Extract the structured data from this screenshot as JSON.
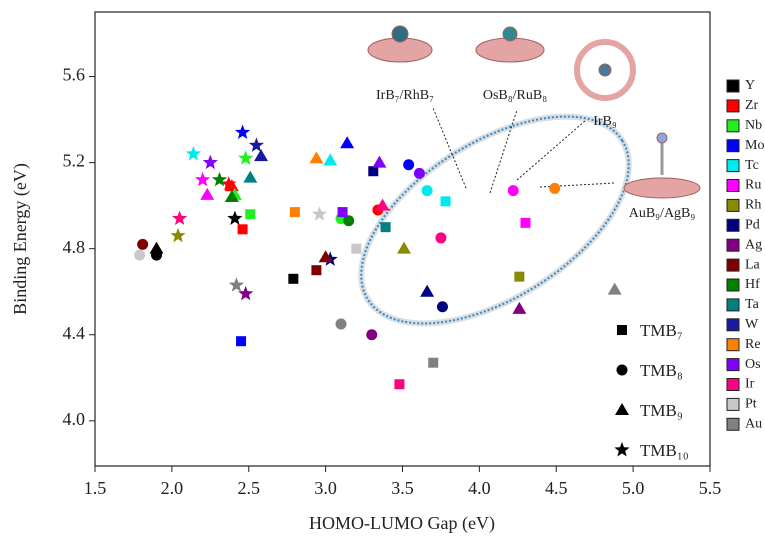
{
  "chart_data": {
    "type": "scatter",
    "xlabel": "HOMO-LUMO Gap (eV)",
    "ylabel": "Binding Energy (eV)",
    "xlim": [
      1.5,
      5.5
    ],
    "ylim": [
      3.79,
      5.9
    ],
    "xticks": [
      1.5,
      {
        "value": 2,
        "label": "2.0"
      },
      2.5,
      {
        "value": 3,
        "label": "3.0"
      },
      3.5,
      {
        "value": 4,
        "label": "4.0"
      },
      4.5,
      {
        "value": 5,
        "label": "5.0"
      },
      5.5
    ],
    "yticks": [
      {
        "value": 4,
        "label": "4.0"
      },
      4.4,
      4.8,
      5.2,
      5.6
    ],
    "markers": [
      "square",
      "circle",
      "triangle",
      "star"
    ],
    "marker_legend": [
      "TMB₇",
      "TMB₈",
      "TMB₉",
      "TMB₁₀"
    ],
    "annotations": [
      "IrB₇/RhB₇",
      "OsB₈/RuB₈",
      "IrB₉",
      "AuB₉/AgB₉"
    ],
    "series": [
      {
        "name": "Y",
        "color": "#000000",
        "x": [
          2.79,
          1.9,
          1.9,
          2.41
        ],
        "values": [
          4.66,
          4.77,
          4.8,
          4.94
        ]
      },
      {
        "name": "Zr",
        "color": "#ff0000",
        "x": [
          2.46,
          3.34,
          2.39,
          2.37
        ],
        "values": [
          4.89,
          4.98,
          5.09,
          5.1
        ]
      },
      {
        "name": "Nb",
        "color": "#22ee22",
        "x": [
          2.51,
          3.1,
          2.41,
          2.48
        ],
        "values": [
          4.96,
          4.94,
          5.05,
          5.22
        ]
      },
      {
        "name": "Mo",
        "color": "#0000ff",
        "x": [
          2.45,
          3.54,
          3.14,
          2.46
        ],
        "values": [
          4.37,
          5.19,
          5.29,
          5.34
        ]
      },
      {
        "name": "Tc",
        "color": "#00e8f0",
        "x": [
          3.78,
          3.66,
          3.03,
          2.14
        ],
        "values": [
          5.02,
          5.07,
          5.21,
          5.24
        ]
      },
      {
        "name": "Ru",
        "color": "#ff00ff",
        "x": [
          4.3,
          4.22,
          2.23,
          2.2
        ],
        "values": [
          4.92,
          5.07,
          5.05,
          5.12
        ]
      },
      {
        "name": "Rh",
        "color": "#8a8a00",
        "x": [
          4.26,
          null,
          3.51,
          2.04
        ],
        "values": [
          4.67,
          null,
          4.8,
          4.86
        ]
      },
      {
        "name": "Pd",
        "color": "#000080",
        "x": [
          3.31,
          3.76,
          3.66,
          3.03
        ],
        "values": [
          5.16,
          4.53,
          4.6,
          4.75
        ]
      },
      {
        "name": "Ag",
        "color": "#800080",
        "x": [
          null,
          3.3,
          4.26,
          2.48
        ],
        "values": [
          null,
          4.4,
          4.52,
          4.59
        ]
      },
      {
        "name": "La",
        "color": "#800000",
        "x": [
          2.94,
          1.81,
          3.0,
          null
        ],
        "values": [
          4.7,
          4.82,
          4.76,
          null
        ]
      },
      {
        "name": "Hf",
        "color": "#008000",
        "x": [
          null,
          3.15,
          2.39,
          2.31
        ],
        "values": [
          null,
          4.93,
          5.04,
          5.12
        ]
      },
      {
        "name": "Ta",
        "color": "#008080",
        "x": [
          3.39,
          null,
          2.51,
          null
        ],
        "values": [
          4.9,
          null,
          5.13,
          null
        ]
      },
      {
        "name": "W",
        "color": "#1a1aa0",
        "x": [
          null,
          null,
          2.58,
          2.55
        ],
        "values": [
          null,
          null,
          5.23,
          5.28
        ]
      },
      {
        "name": "Re",
        "color": "#ff8000",
        "x": [
          2.8,
          4.49,
          2.94,
          null
        ],
        "values": [
          4.97,
          5.08,
          5.22,
          null
        ]
      },
      {
        "name": "Os",
        "color": "#8000ff",
        "x": [
          3.11,
          3.61,
          3.35,
          2.25
        ],
        "values": [
          4.97,
          5.15,
          5.2,
          5.2
        ]
      },
      {
        "name": "Ir",
        "color": "#ff0080",
        "x": [
          3.48,
          3.75,
          3.37,
          2.05
        ],
        "values": [
          4.17,
          4.85,
          5.0,
          4.94
        ]
      },
      {
        "name": "Pt",
        "color": "#c8c8c8",
        "x": [
          3.2,
          1.79,
          null,
          2.96
        ],
        "values": [
          4.8,
          4.77,
          null,
          4.96
        ]
      },
      {
        "name": "Au",
        "color": "#808080",
        "x": [
          3.7,
          3.1,
          4.88,
          2.42
        ],
        "values": [
          4.27,
          4.45,
          4.61,
          4.63
        ]
      }
    ]
  }
}
